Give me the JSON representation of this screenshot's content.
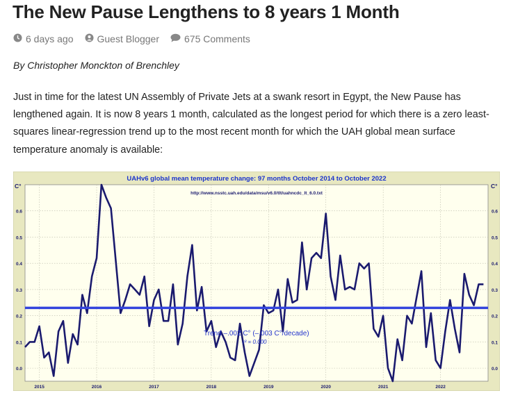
{
  "article": {
    "title": "The New Pause Lengthens to 8 years 1 Month",
    "meta": {
      "date": "6 days ago",
      "date_icon": "clock-icon",
      "author": "Guest Blogger",
      "author_icon": "user-icon",
      "comments": "675 Comments",
      "comments_icon": "comment-icon"
    },
    "byline": "By Christopher Monckton of Brenchley",
    "paragraph": "Just in time for the latest UN Assembly of Private Jets at a swank resort in Egypt, the New Pause has lengthened again. It is now 8 years 1 month, calculated as the longest period for which there is a zero least-squares linear-regression trend up to the most recent month for which the UAH global mean surface temperature anomaly is available:"
  },
  "chart_data": {
    "type": "line",
    "title": "UAHv6 global mean temperature change: 97 months October 2014 to October 2022",
    "subtitle": "http://www.nsstc.uah.edu/data/msu/v6.0/tlt/uahncdc_lt_6.0.txt",
    "ylabel": "C°",
    "ylim": [
      -0.05,
      0.7
    ],
    "yticks": [
      0.0,
      0.1,
      0.2,
      0.3,
      0.4,
      0.5,
      0.6
    ],
    "ytick_labels": [
      "0.0",
      "0.1",
      "0.2",
      "0.3",
      "0.4",
      "0.5",
      "0.6"
    ],
    "xlim": [
      2014.75,
      2022.83
    ],
    "xticks": [
      2015,
      2016,
      2017,
      2018,
      2019,
      2020,
      2021,
      2022
    ],
    "xtick_labels": [
      "2015",
      "2016",
      "2017",
      "2018",
      "2019",
      "2020",
      "2021",
      "2022"
    ],
    "grid": true,
    "series": [
      {
        "color": "#1a1a6e",
        "x_start": 2014.75,
        "x_step": 0.08333,
        "values": [
          0.08,
          0.1,
          0.1,
          0.16,
          0.04,
          0.06,
          -0.03,
          0.14,
          0.18,
          0.02,
          0.13,
          0.09,
          0.28,
          0.21,
          0.35,
          0.42,
          0.7,
          0.65,
          0.61,
          0.41,
          0.21,
          0.26,
          0.32,
          0.3,
          0.28,
          0.35,
          0.16,
          0.26,
          0.3,
          0.18,
          0.18,
          0.32,
          0.09,
          0.17,
          0.35,
          0.47,
          0.22,
          0.31,
          0.14,
          0.18,
          0.08,
          0.14,
          0.1,
          0.04,
          0.03,
          0.17,
          0.06,
          -0.03,
          0.02,
          0.07,
          0.24,
          0.21,
          0.22,
          0.3,
          0.14,
          0.34,
          0.25,
          0.26,
          0.48,
          0.3,
          0.42,
          0.44,
          0.42,
          0.59,
          0.35,
          0.26,
          0.43,
          0.3,
          0.31,
          0.3,
          0.4,
          0.38,
          0.4,
          0.15,
          0.12,
          0.2,
          0.0,
          -0.05,
          0.11,
          0.03,
          0.2,
          0.17,
          0.27,
          0.37,
          0.08,
          0.21,
          0.03,
          0.0,
          0.14,
          0.26,
          0.15,
          0.06,
          0.36,
          0.28,
          0.24,
          0.32,
          0.32
        ]
      },
      {
        "color": "#3344dd",
        "values": [
          0.23,
          0.23
        ]
      }
    ],
    "annotations": {
      "trend": "Trend –.002 C° (–.003 C°/decade)",
      "r2": "r² = 0.000"
    },
    "colors": {
      "plot_background": "#ffffee",
      "frame": "#e8e8c0",
      "data_line": "#1a1a6e",
      "trend_line": "#3344dd",
      "title_text": "#1a33cc",
      "grid": "#bbbbaa"
    }
  }
}
